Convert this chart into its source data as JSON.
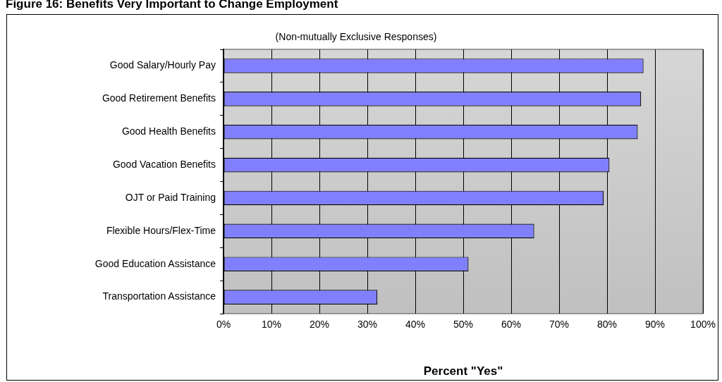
{
  "chart_data": {
    "type": "bar",
    "orientation": "horizontal",
    "title": "Figure 16: Benefits Very Important to Change Employment",
    "subtitle": "(Non-mutually Exclusive Responses)",
    "xlabel": "Percent \"Yes\"",
    "categories": [
      "Good Salary/Hourly Pay",
      "Good Retirement Benefits",
      "Good Health Benefits",
      "Good Vacation Benefits",
      "OJT or Paid Training",
      "Flexible Hours/Flex-Time",
      "Good Education Assistance",
      "Transportation Assistance"
    ],
    "values": [
      87.6,
      87.1,
      86.4,
      80.5,
      79.3,
      64.8,
      51.1,
      32.1
    ],
    "color": "#8080ff",
    "xlim": [
      0,
      100
    ],
    "xticks": [
      {
        "value": 0,
        "label": "0%"
      },
      {
        "value": 10,
        "label": "10%"
      },
      {
        "value": 20,
        "label": "20%"
      },
      {
        "value": 30,
        "label": "30%"
      },
      {
        "value": 40,
        "label": "40%"
      },
      {
        "value": 50,
        "label": "50%"
      },
      {
        "value": 60,
        "label": "60%"
      },
      {
        "value": 70,
        "label": "70%"
      },
      {
        "value": 80,
        "label": "80%"
      },
      {
        "value": 90,
        "label": "90%"
      },
      {
        "value": 100,
        "label": "100%"
      }
    ],
    "grid": "x",
    "legend": false
  }
}
